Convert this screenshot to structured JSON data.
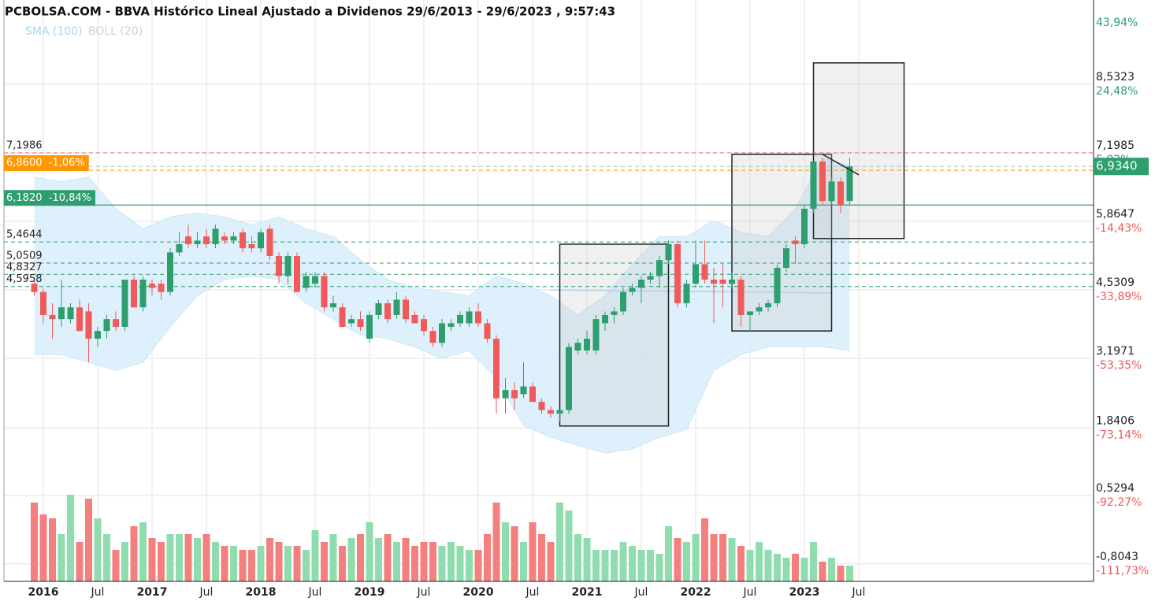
{
  "chart_data": {
    "type": "candlestick",
    "title": "PCBOLSA.COM - BBVA Histórico Lineal Ajustado a Dividenos 29/6/2013 - 29/6/2023 , 9:57:43",
    "x": [
      "2015-12",
      "2016-01",
      "2016-02",
      "2016-03",
      "2016-04",
      "2016-05",
      "2016-06",
      "2016-07",
      "2016-08",
      "2016-09",
      "2016-10",
      "2016-11",
      "2016-12",
      "2017-01",
      "2017-02",
      "2017-03",
      "2017-04",
      "2017-05",
      "2017-06",
      "2017-07",
      "2017-08",
      "2017-09",
      "2017-10",
      "2017-11",
      "2017-12",
      "2018-01",
      "2018-02",
      "2018-03",
      "2018-04",
      "2018-05",
      "2018-06",
      "2018-07",
      "2018-08",
      "2018-09",
      "2018-10",
      "2018-11",
      "2018-12",
      "2019-01",
      "2019-02",
      "2019-03",
      "2019-04",
      "2019-05",
      "2019-06",
      "2019-07",
      "2019-08",
      "2019-09",
      "2019-10",
      "2019-11",
      "2019-12",
      "2020-01",
      "2020-02",
      "2020-03",
      "2020-04",
      "2020-05",
      "2020-06",
      "2020-07",
      "2020-08",
      "2020-09",
      "2020-10",
      "2020-11",
      "2020-12",
      "2021-01",
      "2021-02",
      "2021-03",
      "2021-04",
      "2021-05",
      "2021-06",
      "2021-07",
      "2021-08",
      "2021-09",
      "2021-10",
      "2021-11",
      "2021-12",
      "2022-01",
      "2022-02",
      "2022-03",
      "2022-04",
      "2022-05",
      "2022-06",
      "2022-07",
      "2022-08",
      "2022-09",
      "2022-10",
      "2022-11",
      "2022-12",
      "2023-01",
      "2023-02",
      "2023-03",
      "2023-04",
      "2023-05",
      "2023-06"
    ],
    "open": [
      4.65,
      4.49,
      4.04,
      3.96,
      3.96,
      4.19,
      4.11,
      3.58,
      3.73,
      3.96,
      3.81,
      4.73,
      4.19,
      4.65,
      4.65,
      4.49,
      5.26,
      5.57,
      5.42,
      5.57,
      5.42,
      5.57,
      5.49,
      5.65,
      5.42,
      5.34,
      5.72,
      5.19,
      4.8,
      5.19,
      4.57,
      4.65,
      4.8,
      4.19,
      4.19,
      3.88,
      3.96,
      3.58,
      4.04,
      4.27,
      4.04,
      4.34,
      4.04,
      3.96,
      3.73,
      3.5,
      3.81,
      3.88,
      3.88,
      4.11,
      3.88,
      3.58,
      2.42,
      2.58,
      2.5,
      2.65,
      2.35,
      2.19,
      2.12,
      2.19,
      3.35,
      3.35,
      3.35,
      3.88,
      4.04,
      4.11,
      4.49,
      4.57,
      4.73,
      4.8,
      5.11,
      5.42,
      4.27,
      4.65,
      5.03,
      4.73,
      4.73,
      4.65,
      4.73,
      4.04,
      4.11,
      4.19,
      4.27,
      4.96,
      5.49,
      5.42,
      6.11,
      7.03,
      6.26,
      6.64,
      6.26
    ],
    "high": [
      4.73,
      4.57,
      4.27,
      4.73,
      4.27,
      4.34,
      4.27,
      3.81,
      4.04,
      4.11,
      4.73,
      4.8,
      4.8,
      4.73,
      4.73,
      5.34,
      5.65,
      5.8,
      5.65,
      5.72,
      5.8,
      5.65,
      5.65,
      5.72,
      5.57,
      5.72,
      5.8,
      5.26,
      5.26,
      5.26,
      4.88,
      4.88,
      4.88,
      4.42,
      4.27,
      4.04,
      4.11,
      4.11,
      4.34,
      4.34,
      4.49,
      4.42,
      4.11,
      4.04,
      3.81,
      3.96,
      3.96,
      4.11,
      4.19,
      4.27,
      3.96,
      3.65,
      2.81,
      2.73,
      3.12,
      2.73,
      2.42,
      2.27,
      2.19,
      3.5,
      3.58,
      3.73,
      4.04,
      4.11,
      4.19,
      4.57,
      4.65,
      4.8,
      4.88,
      5.19,
      5.49,
      5.49,
      4.73,
      5.49,
      5.49,
      4.96,
      5.03,
      4.88,
      4.8,
      4.11,
      4.27,
      4.34,
      5.03,
      5.42,
      5.57,
      6.18,
      7.03,
      7.1,
      6.72,
      6.72,
      7.1
    ],
    "low": [
      4.42,
      3.88,
      3.58,
      3.81,
      3.88,
      3.73,
      3.12,
      3.42,
      3.58,
      3.73,
      3.73,
      4.19,
      4.11,
      4.42,
      4.34,
      4.42,
      5.19,
      5.34,
      5.34,
      5.34,
      5.34,
      5.42,
      5.42,
      5.26,
      5.26,
      5.26,
      5.11,
      4.65,
      4.65,
      4.49,
      4.49,
      4.57,
      4.11,
      4.11,
      3.81,
      3.81,
      3.73,
      3.5,
      3.96,
      3.88,
      3.96,
      3.88,
      3.88,
      3.65,
      3.42,
      3.42,
      3.73,
      3.81,
      3.81,
      3.81,
      3.5,
      2.12,
      2.12,
      2.19,
      2.42,
      2.35,
      2.12,
      2.04,
      1.96,
      2.12,
      3.27,
      3.27,
      3.27,
      3.73,
      3.88,
      4.04,
      4.42,
      4.27,
      4.65,
      4.57,
      5.03,
      4.19,
      4.19,
      4.57,
      4.65,
      3.88,
      4.19,
      4.57,
      3.81,
      3.73,
      4.04,
      4.11,
      4.19,
      4.88,
      5.03,
      5.34,
      6.03,
      6.18,
      6.18,
      6.03,
      6.18
    ],
    "close": [
      4.49,
      4.04,
      3.96,
      4.19,
      4.19,
      3.73,
      3.58,
      3.73,
      3.96,
      3.81,
      4.73,
      4.19,
      4.73,
      4.57,
      4.49,
      5.26,
      5.42,
      5.42,
      5.49,
      5.42,
      5.72,
      5.49,
      5.57,
      5.34,
      5.34,
      5.65,
      5.19,
      4.8,
      5.19,
      4.49,
      4.8,
      4.8,
      4.19,
      4.27,
      3.81,
      3.96,
      3.81,
      4.04,
      4.27,
      3.96,
      4.34,
      3.96,
      3.88,
      3.73,
      3.5,
      3.88,
      3.88,
      4.04,
      4.11,
      3.88,
      3.58,
      2.42,
      2.58,
      2.42,
      2.65,
      2.35,
      2.19,
      2.12,
      2.19,
      3.42,
      3.5,
      3.58,
      3.96,
      4.04,
      4.11,
      4.49,
      4.57,
      4.73,
      4.8,
      5.11,
      5.42,
      4.27,
      4.65,
      5.03,
      4.73,
      4.65,
      4.65,
      4.73,
      4.04,
      4.11,
      4.19,
      4.27,
      4.96,
      5.34,
      5.42,
      6.11,
      7.03,
      6.26,
      6.64,
      6.18,
      6.934
    ],
    "up_color": "#2e9e6e",
    "down_color": "#f05a5a",
    "volume": [
      100,
      85,
      80,
      60,
      110,
      50,
      105,
      80,
      60,
      40,
      50,
      70,
      75,
      55,
      50,
      60,
      60,
      60,
      55,
      60,
      50,
      45,
      45,
      40,
      40,
      45,
      55,
      50,
      45,
      45,
      40,
      65,
      50,
      60,
      45,
      55,
      60,
      75,
      55,
      60,
      50,
      55,
      45,
      50,
      50,
      45,
      50,
      45,
      40,
      40,
      60,
      100,
      75,
      70,
      50,
      75,
      60,
      50,
      100,
      90,
      60,
      55,
      40,
      40,
      40,
      50,
      45,
      40,
      40,
      35,
      70,
      55,
      50,
      60,
      80,
      60,
      60,
      55,
      45,
      40,
      50,
      40,
      35,
      30,
      35,
      30,
      50,
      25,
      30,
      20,
      20
    ],
    "volume_ylim": [
      0,
      110
    ],
    "volume_up_color": "#8fdcae",
    "volume_down_color": "#f47f7f",
    "bands": {
      "name": "BOLL (20)",
      "color": "#cfcfcf",
      "fill": "#d8edfa",
      "x": [
        "2015-12",
        "2016-03",
        "2016-06",
        "2016-09",
        "2016-12",
        "2017-03",
        "2017-06",
        "2017-09",
        "2017-12",
        "2018-03",
        "2018-06",
        "2018-09",
        "2018-12",
        "2019-03",
        "2019-06",
        "2019-09",
        "2019-12",
        "2020-03",
        "2020-06",
        "2020-09",
        "2020-12",
        "2021-03",
        "2021-06",
        "2021-09",
        "2021-12",
        "2022-03",
        "2022-06",
        "2022-09",
        "2022-12",
        "2023-03",
        "2023-06"
      ],
      "upper": [
        6.72,
        6.64,
        6.72,
        6.11,
        5.72,
        5.95,
        6.03,
        5.95,
        5.8,
        5.95,
        5.72,
        5.57,
        5.11,
        4.73,
        4.57,
        4.49,
        4.42,
        4.8,
        4.65,
        4.42,
        4.04,
        4.42,
        5.03,
        5.57,
        5.57,
        5.88,
        5.65,
        5.57,
        6.11,
        7.1,
        6.95
      ],
      "lower": [
        3.27,
        3.27,
        3.12,
        2.96,
        3.12,
        3.81,
        4.42,
        4.73,
        4.8,
        4.73,
        4.27,
        3.96,
        3.65,
        3.58,
        3.42,
        3.19,
        3.35,
        2.81,
        1.89,
        1.66,
        1.5,
        1.35,
        1.43,
        1.66,
        1.81,
        2.96,
        3.27,
        3.42,
        3.42,
        3.42,
        3.35
      ]
    },
    "sma": {
      "name": "SMA (100)",
      "color": "#a9d4f0",
      "x": [
        "2020-09",
        "2023-04"
      ],
      "values": [
        4.53,
        4.47
      ]
    },
    "xlim": [
      "2015-08",
      "2025-08"
    ],
    "xticks": [
      {
        "value": "2016-01",
        "label": "2016"
      },
      {
        "value": "2016-07",
        "label": "Jul"
      },
      {
        "value": "2017-01",
        "label": "2017"
      },
      {
        "value": "2017-07",
        "label": "Jul"
      },
      {
        "value": "2018-01",
        "label": "2018"
      },
      {
        "value": "2018-07",
        "label": "Jul"
      },
      {
        "value": "2019-01",
        "label": "2019"
      },
      {
        "value": "2019-07",
        "label": "Jul"
      },
      {
        "value": "2020-01",
        "label": "2020"
      },
      {
        "value": "2020-07",
        "label": "Jul"
      },
      {
        "value": "2021-01",
        "label": "2021"
      },
      {
        "value": "2021-07",
        "label": "Jul"
      },
      {
        "value": "2022-01",
        "label": "2022"
      },
      {
        "value": "2022-07",
        "label": "Jul"
      },
      {
        "value": "2023-01",
        "label": "2023"
      },
      {
        "value": "2023-07",
        "label": "Jul"
      }
    ],
    "ylim": [
      -1.145,
      10.174
    ],
    "yticks": [
      {
        "value": 8.5323,
        "label": "8,5323"
      },
      {
        "value": 7.1985,
        "label": "7,1985"
      },
      {
        "value": 5.8647,
        "label": "5,8647"
      },
      {
        "value": 4.5309,
        "label": "4,5309"
      },
      {
        "value": 3.1971,
        "label": "3,1971"
      },
      {
        "value": 1.8406,
        "label": "1,8406"
      },
      {
        "value": 0.5294,
        "label": "0,5294"
      },
      {
        "value": -0.8043,
        "label": "-0,8043"
      }
    ],
    "y2lim": [
      -116.7,
      48.43
    ],
    "y2ticks": [
      {
        "value": 43.94,
        "label": "43,94%"
      },
      {
        "value": 24.48,
        "label": "24,48%"
      },
      {
        "value": 5.02,
        "label": "5,02%"
      },
      {
        "value": -14.43,
        "label": "-14,43%"
      },
      {
        "value": -33.89,
        "label": "-33,89%"
      },
      {
        "value": -53.35,
        "label": "-53,35%"
      },
      {
        "value": -73.14,
        "label": "-73,14%"
      },
      {
        "value": -92.27,
        "label": "-92,27%"
      },
      {
        "value": -111.73,
        "label": "-111,73%"
      }
    ],
    "grid": true,
    "levels": [
      {
        "value": 7.1986,
        "label": "7,1986",
        "color": "#f05a5a",
        "dashed": true,
        "boxed": false
      },
      {
        "value": 6.86,
        "label": "6,8600  -1,06%",
        "color": "#ff9800",
        "dashed": true,
        "boxed": true
      },
      {
        "value": 6.182,
        "label": "6,1820  -10,84%",
        "color": "#2e9e6e",
        "dashed": false,
        "boxed": true
      },
      {
        "value": 5.4644,
        "label": "5,4644",
        "color": "#2e9e6e",
        "dashed": true,
        "boxed": false
      },
      {
        "value": 5.0509,
        "label": "5,0509",
        "color": "#2e9e6e",
        "dashed": true,
        "boxed": false
      },
      {
        "value": 4.8327,
        "label": "4,8327",
        "color": "#2e9e6e",
        "dashed": true,
        "boxed": false
      },
      {
        "value": 4.5958,
        "label": "4,5958",
        "color": "#2e9e6e",
        "dashed": true,
        "boxed": false
      }
    ],
    "last_price": {
      "value": 6.934,
      "label": "6,9340",
      "color": "#2e9e6e"
    },
    "boxes": [
      {
        "x0": "2020-10",
        "x1": "2021-10",
        "y0": 1.88,
        "y1": 5.42
      },
      {
        "x0": "2022-05",
        "x1": "2023-04",
        "y0": 3.73,
        "y1": 7.17
      },
      {
        "x0": "2023-02",
        "x1": "2023-12",
        "y0": 5.53,
        "y1": 8.95
      }
    ],
    "trendline": {
      "x": [
        "2023-03",
        "2023-07"
      ],
      "y": [
        7.17,
        6.77
      ]
    }
  }
}
